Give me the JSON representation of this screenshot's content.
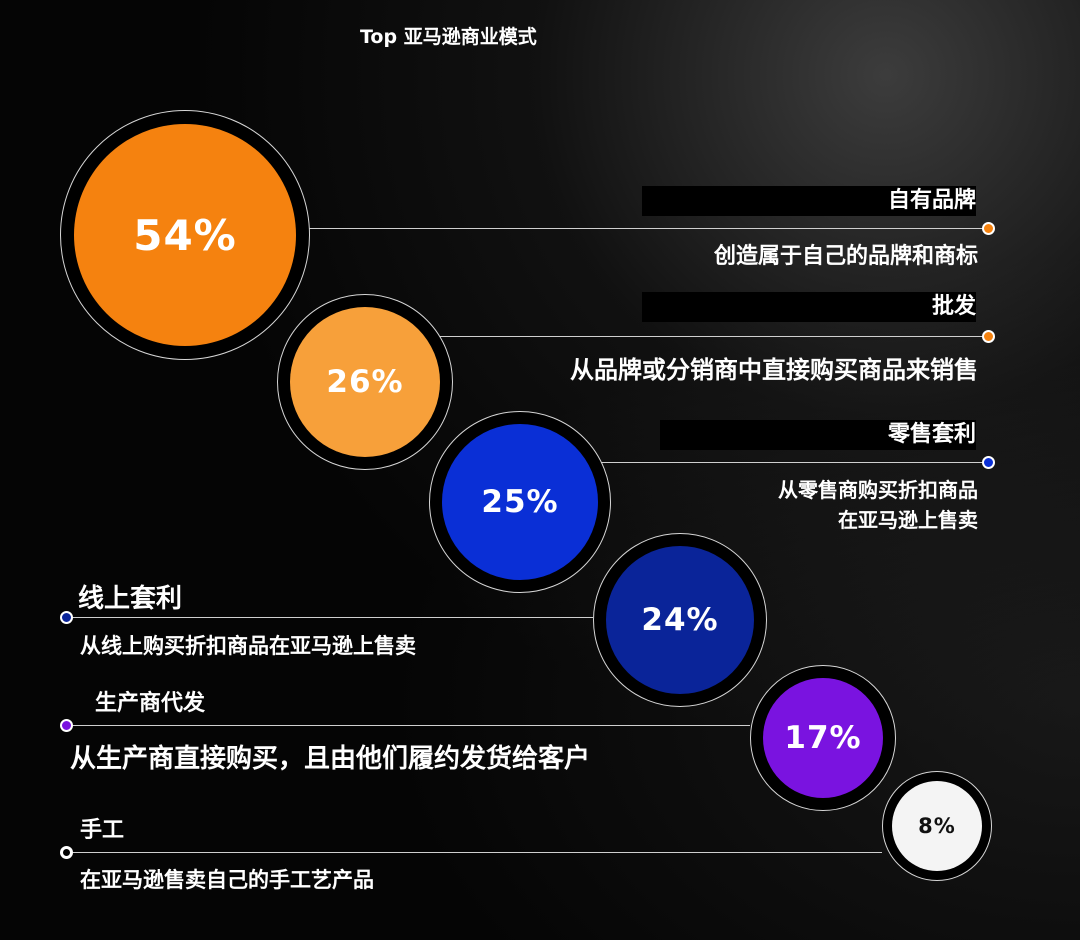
{
  "title": "Top 亚马逊商业模式",
  "colors": {
    "orange": "#f5820f",
    "light_orange": "#f7a03a",
    "blue": "#0a2fd6",
    "navy": "#0a2499",
    "purple": "#7a13e0",
    "white": "#f4f4f4"
  },
  "chart_data": {
    "type": "bubble",
    "title": "Top 亚马逊商业模式",
    "unit": "%",
    "categories": [
      "自有品牌",
      "批发",
      "零售套利",
      "线上套利",
      "生产商代发",
      "手工"
    ],
    "values": [
      54,
      26,
      25,
      24,
      17,
      8
    ],
    "value_labels": [
      "54%",
      "26%",
      "25%",
      "24%",
      "17%",
      "8%"
    ],
    "descriptions": [
      "创造属于自己的品牌和商标",
      "从品牌或分销商中直接购买商品来销售",
      "从零售商购买折扣商品\n在亚马逊上售卖",
      "从线上购买折扣商品在亚马逊上售卖",
      "从生产商直接购买，且由他们履约发货给客户",
      "在亚马逊售卖自己的手工艺产品"
    ]
  }
}
